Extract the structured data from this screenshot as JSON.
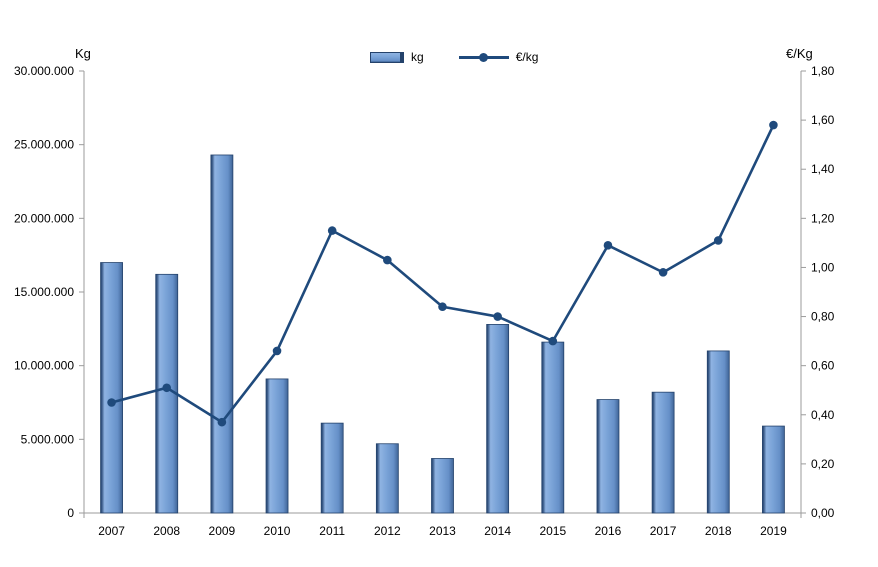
{
  "chart_data": {
    "type": "combo",
    "title": "",
    "categories": [
      "2007",
      "2008",
      "2009",
      "2010",
      "2011",
      "2012",
      "2013",
      "2014",
      "2015",
      "2016",
      "2017",
      "2018",
      "2019"
    ],
    "series": [
      {
        "name": "kg",
        "type": "bar",
        "axis": "left",
        "values": [
          17000000,
          16200000,
          24300000,
          9100000,
          6100000,
          4700000,
          3700000,
          12800000,
          11600000,
          7700000,
          8200000,
          11000000,
          5900000
        ]
      },
      {
        "name": "€/kg",
        "type": "line",
        "axis": "right",
        "values": [
          0.45,
          0.51,
          0.37,
          0.66,
          1.15,
          1.03,
          0.84,
          0.8,
          0.7,
          1.09,
          0.98,
          1.11,
          1.58
        ]
      }
    ],
    "left_axis": {
      "title": "Kg",
      "min": 0,
      "max": 30000000,
      "tick_values": [
        0,
        5000000,
        10000000,
        15000000,
        20000000,
        25000000,
        30000000
      ],
      "tick_labels": [
        "0",
        "5.000.000",
        "10.000.000",
        "15.000.000",
        "20.000.000",
        "25.000.000",
        "30.000.000"
      ]
    },
    "right_axis": {
      "title": "€/Kg",
      "min": 0,
      "max": 1.8,
      "tick_values": [
        0,
        0.2,
        0.4,
        0.6,
        0.8,
        1.0,
        1.2,
        1.4,
        1.6,
        1.8
      ],
      "tick_labels": [
        "0,00",
        "0,20",
        "0,40",
        "0,60",
        "0,80",
        "1,00",
        "1,20",
        "1,40",
        "1,60",
        "1,80"
      ]
    },
    "legend_position": "top-center",
    "grid": false,
    "colors": {
      "bar_edge": "#24426b",
      "bar_dark": "#31517e",
      "bar_highlight": "#8fb3e2",
      "bar_mid": "#7ba4d8",
      "bar_body": "#6690c8",
      "bar_shade": "#3f6496",
      "line": "#1f4a7c",
      "axis": "#9b9b9b",
      "text": "#000000"
    }
  }
}
